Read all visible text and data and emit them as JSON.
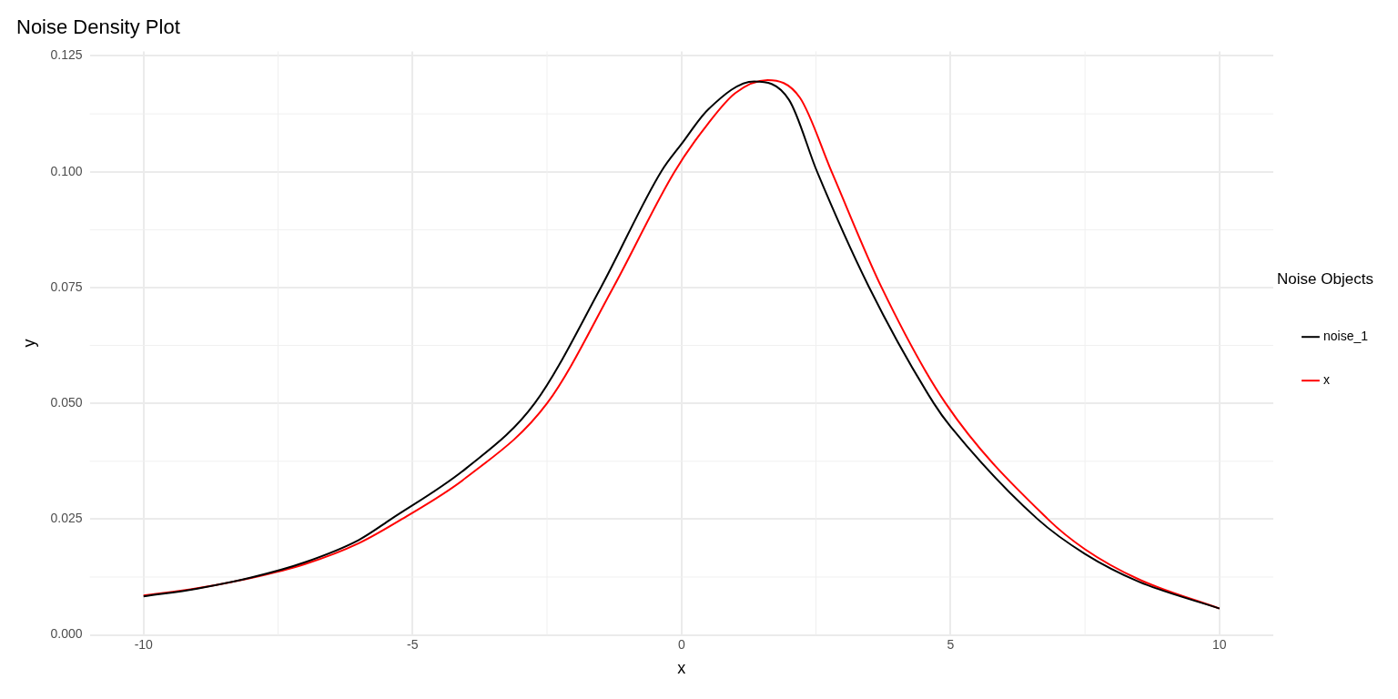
{
  "chart_data": {
    "type": "line",
    "title": "Noise Density Plot",
    "xlabel": "x",
    "ylabel": "y",
    "legend_title": "Noise Objects",
    "legend": "right",
    "grid": true,
    "marker": "none",
    "line_style": "solid",
    "xlim": [
      -11,
      11
    ],
    "xticks": [
      -10,
      -5,
      0,
      5,
      10
    ],
    "ylim": [
      0,
      0.126
    ],
    "yticks": [
      {
        "value": 0,
        "label": "0.000"
      },
      0.025,
      {
        "value": 0.05,
        "label": "0.050"
      },
      0.075,
      {
        "value": 0.1,
        "label": "0.100"
      },
      0.125
    ],
    "series": [
      {
        "name": "noise_1",
        "color": "#000000",
        "x": [
          -10,
          -9,
          -8,
          -7,
          -6,
          -5.4,
          -4,
          -2.73,
          -1.5,
          -0.38,
          0,
          0.5,
          1.35,
          2,
          2.52,
          3.49,
          4.69,
          5,
          6.62,
          7.5,
          8.5,
          10
        ],
        "values": [
          0.0083,
          0.01,
          0.0124,
          0.0157,
          0.0205,
          0.025,
          0.036,
          0.05,
          0.075,
          0.1,
          0.106,
          0.1135,
          0.1195,
          0.1155,
          0.1,
          0.075,
          0.05,
          0.045,
          0.025,
          0.0175,
          0.0115,
          0.0057
        ]
      },
      {
        "name": "x",
        "color": "#ff0000",
        "x": [
          -10,
          -9,
          -8,
          -7,
          -6,
          -5.2,
          -4,
          -2.5,
          -1.27,
          -0.13,
          0.5,
          1,
          1.6,
          2.2,
          2.79,
          3.72,
          4.91,
          6.81,
          7.5,
          8.5,
          10
        ],
        "values": [
          0.0085,
          0.0101,
          0.0123,
          0.0153,
          0.0198,
          0.025,
          0.034,
          0.05,
          0.075,
          0.1,
          0.1105,
          0.117,
          0.1198,
          0.116,
          0.1,
          0.075,
          0.05,
          0.025,
          0.0185,
          0.012,
          0.0057
        ]
      }
    ]
  }
}
